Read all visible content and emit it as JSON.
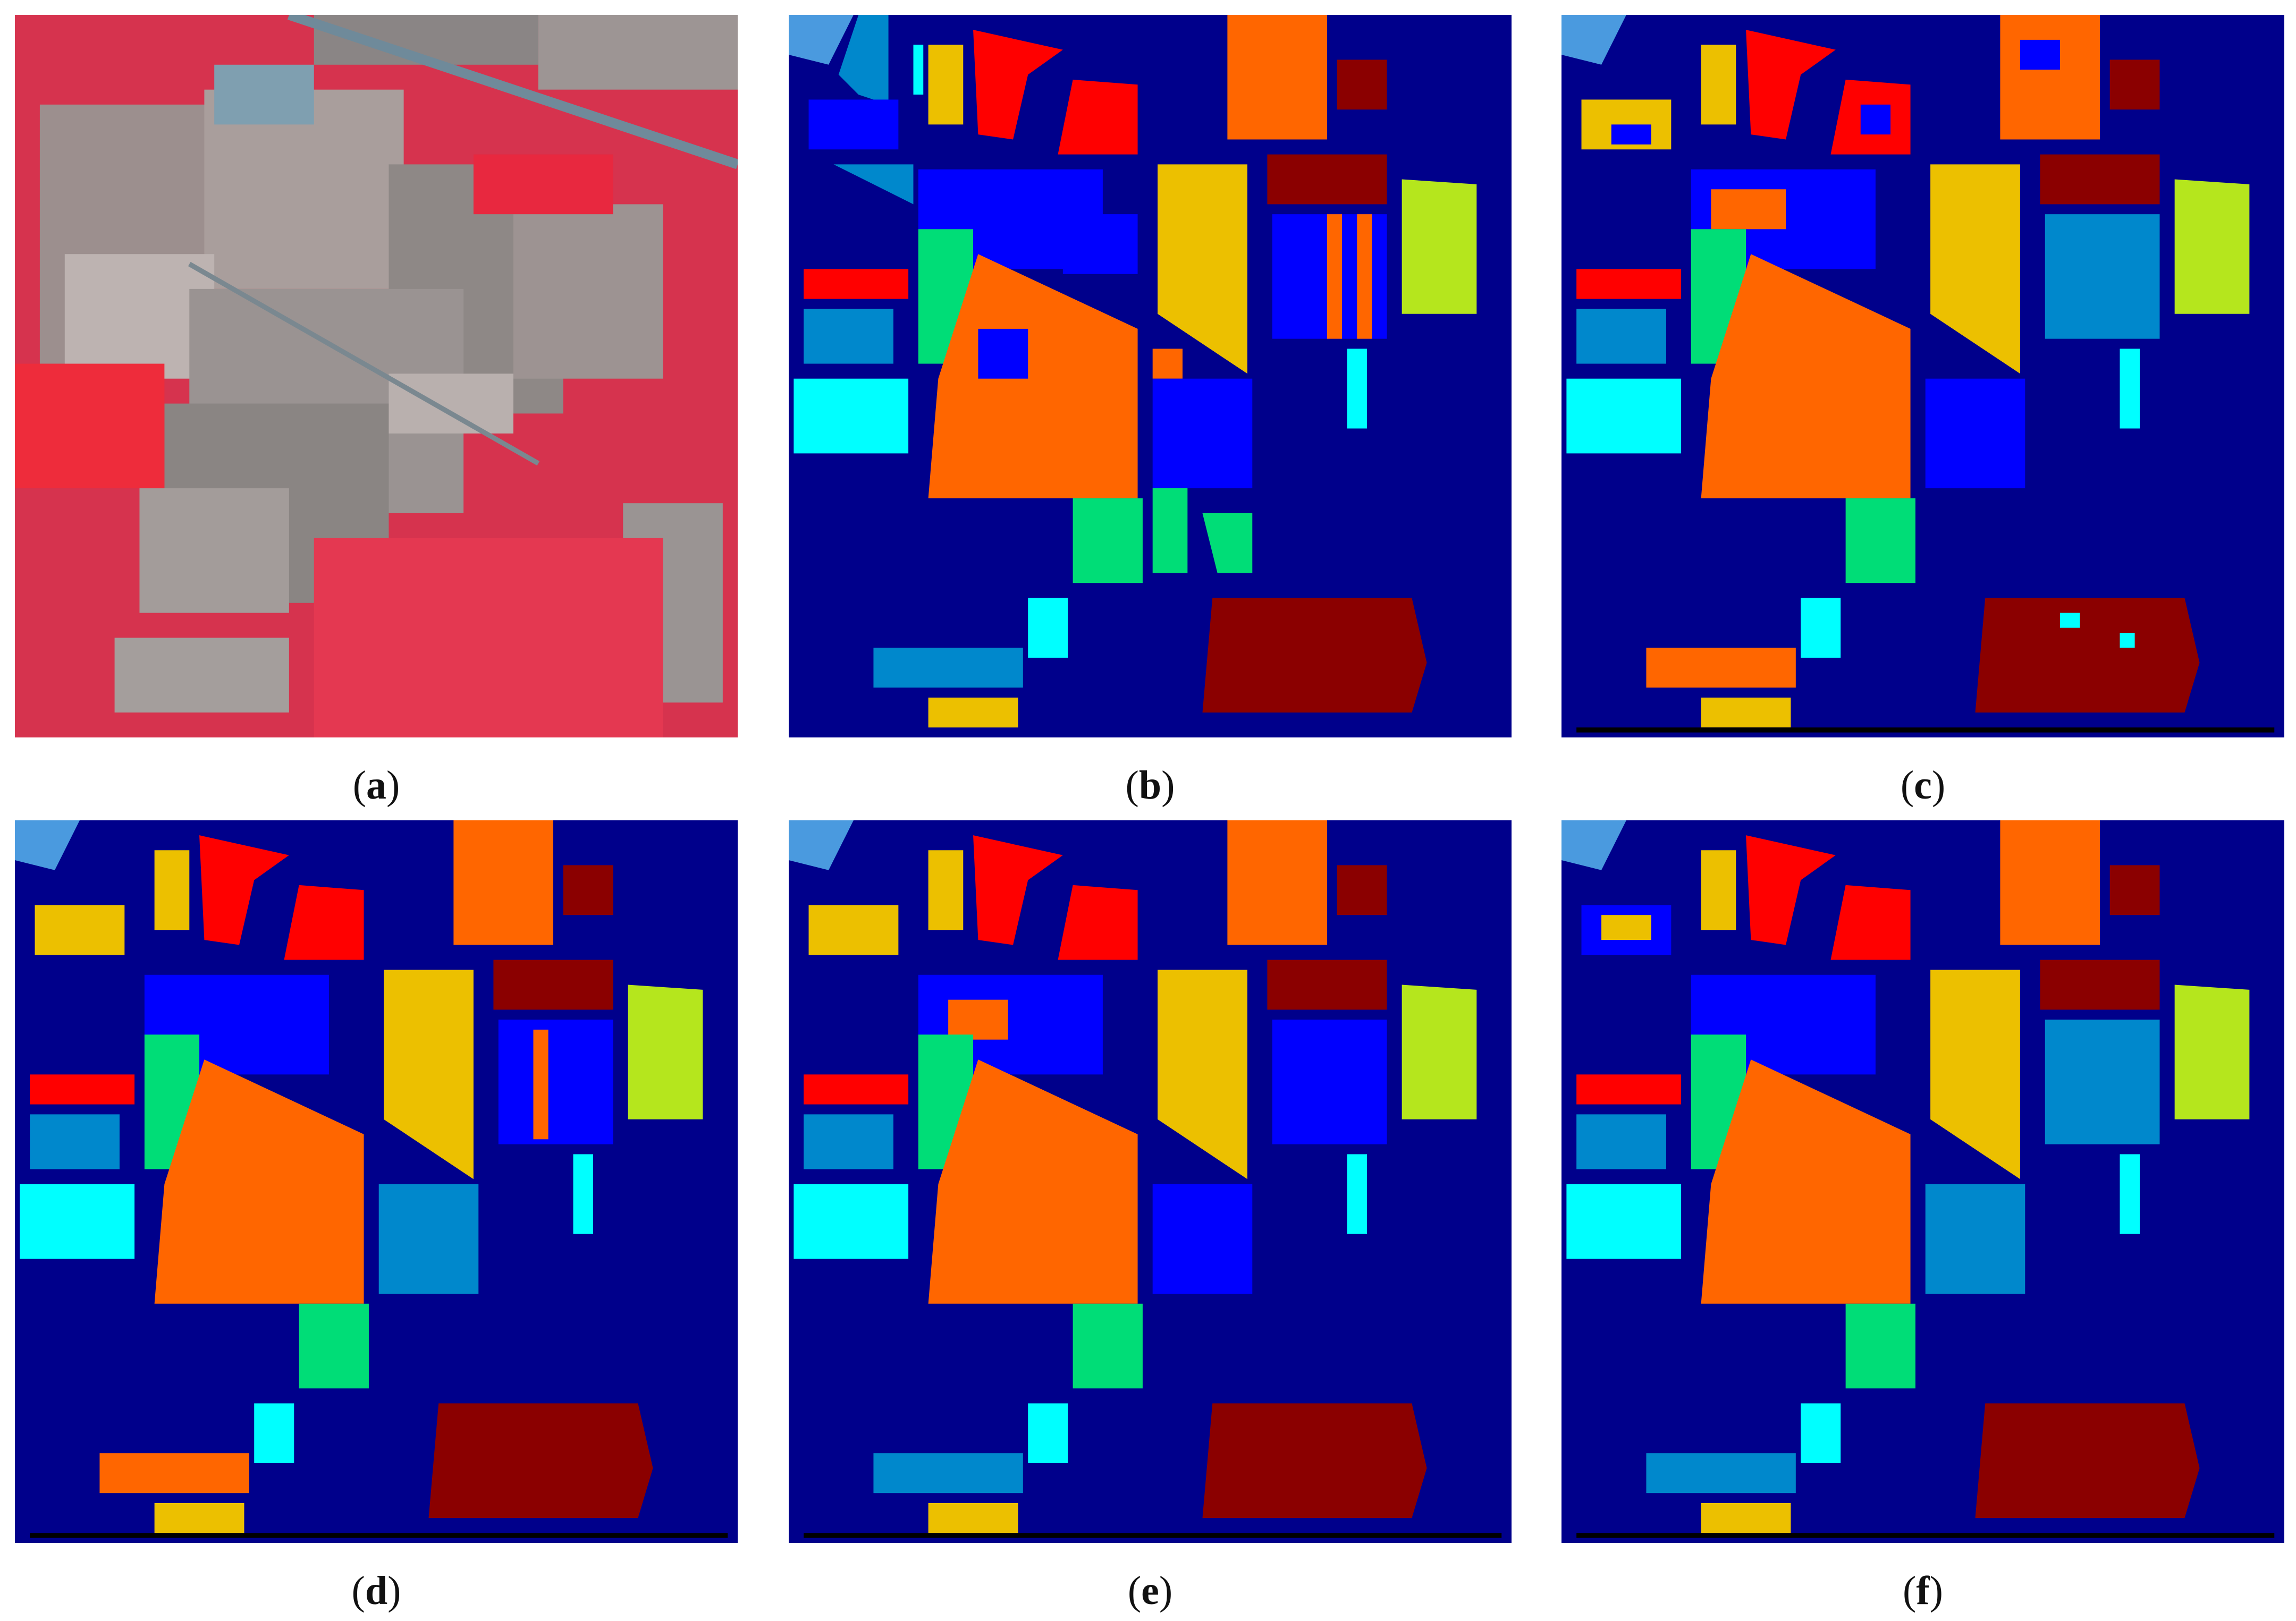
{
  "figure": {
    "panels": [
      {
        "id": "a",
        "caption_open": "(",
        "letter": "a",
        "caption_close": ")",
        "kind": "false-color-image"
      },
      {
        "id": "b",
        "caption_open": "(",
        "letter": "b",
        "caption_close": ")",
        "kind": "ground-truth-map"
      },
      {
        "id": "c",
        "caption_open": "(",
        "letter": "c",
        "caption_close": ")",
        "kind": "classification-map"
      },
      {
        "id": "d",
        "caption_open": "(",
        "letter": "d",
        "caption_close": ")",
        "kind": "classification-map"
      },
      {
        "id": "e",
        "caption_open": "(",
        "letter": "e",
        "caption_close": ")",
        "kind": "classification-map"
      },
      {
        "id": "f",
        "caption_open": "(",
        "letter": "f",
        "caption_close": ")",
        "kind": "classification-map"
      }
    ],
    "colors": {
      "background": "#00008b",
      "classes": [
        "#0000ff",
        "#ff0000",
        "#ff6600",
        "#ecc000",
        "#00dd77",
        "#00ffff",
        "#0088cc",
        "#8b0000",
        "#b5e61d",
        "#4a9adf"
      ],
      "false_color": {
        "vegetation": "#e0304a",
        "soil": "#8f8a88",
        "light_soil": "#b8b1ae",
        "road": "#6f8a9a"
      }
    }
  }
}
